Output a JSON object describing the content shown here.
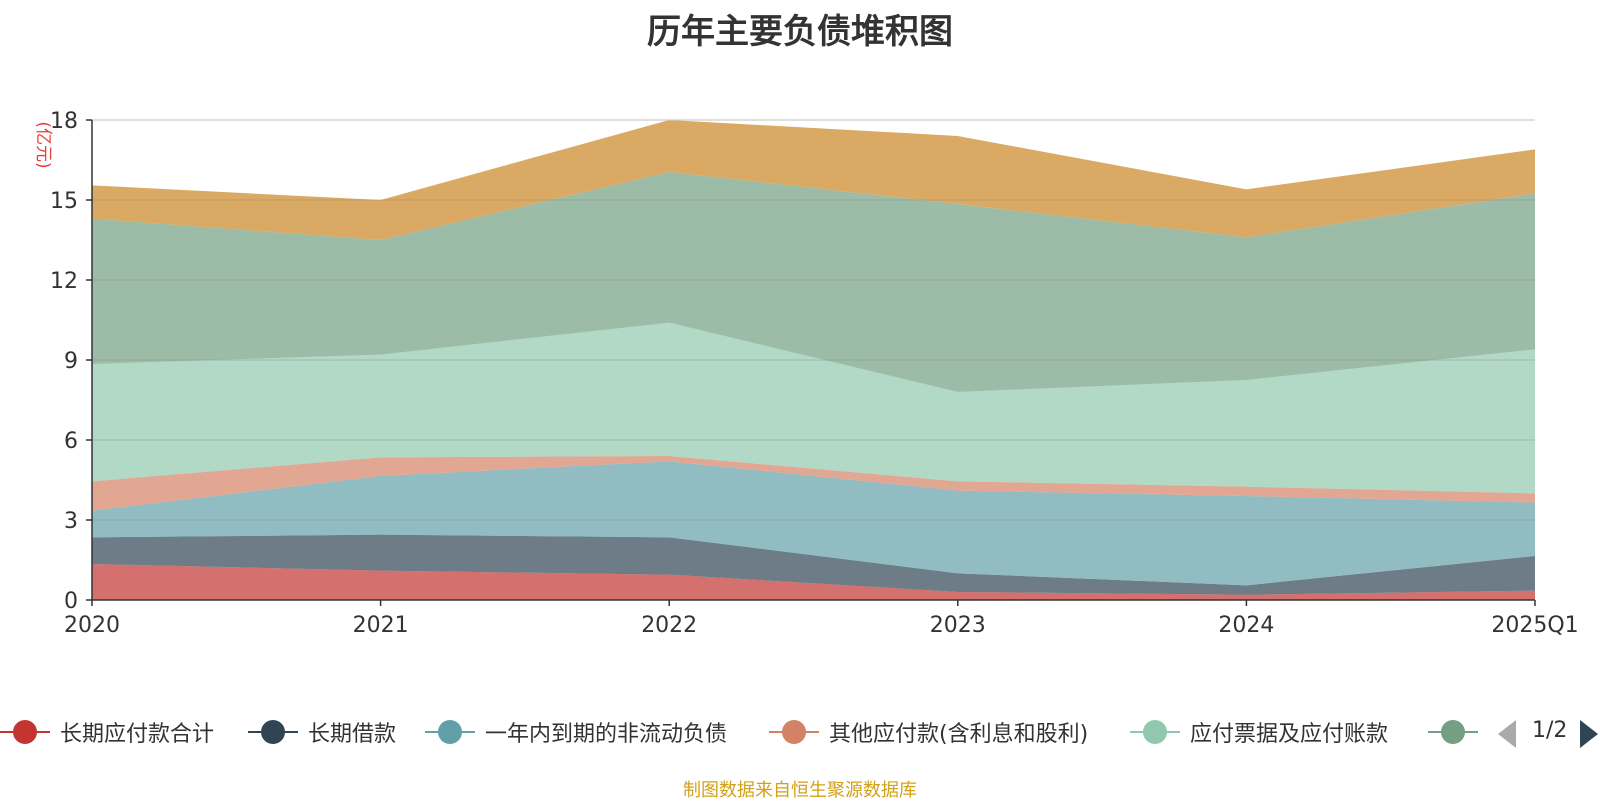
{
  "chart_data": {
    "type": "area",
    "stacked": true,
    "title": "历年主要负债堆积图",
    "ylabel": "(亿元)",
    "xlabel": "",
    "categories": [
      "2020",
      "2021",
      "2022",
      "2023",
      "2024",
      "2025Q1"
    ],
    "ylim": [
      0,
      18
    ],
    "yticks": [
      "0",
      "3",
      "6",
      "9",
      "12",
      "15",
      "18"
    ],
    "grid": true,
    "legend_position": "bottom",
    "series": [
      {
        "name": "长期应付款合计",
        "color": "#c23531",
        "values": [
          1.35,
          1.1,
          0.95,
          0.3,
          0.2,
          0.35
        ]
      },
      {
        "name": "长期借款",
        "color": "#2f4554",
        "values": [
          1.0,
          1.35,
          1.4,
          0.7,
          0.35,
          1.3
        ]
      },
      {
        "name": "一年内到期的非流动负债",
        "color": "#61a0a8",
        "values": [
          1.0,
          2.2,
          2.85,
          3.1,
          3.35,
          2.0
        ]
      },
      {
        "name": "其他应付款(含利息和股利)",
        "color": "#d48265",
        "values": [
          1.1,
          0.7,
          0.2,
          0.35,
          0.35,
          0.35
        ]
      },
      {
        "name": "应付票据及应付账款",
        "color": "#91c7ae",
        "values": [
          4.4,
          3.85,
          5.0,
          3.35,
          4.0,
          5.4
        ]
      },
      {
        "name": "",
        "color": "#749f83",
        "values": [
          5.45,
          4.3,
          5.65,
          7.05,
          5.35,
          5.85
        ]
      },
      {
        "name": "",
        "color": "#ca8622",
        "values": [
          1.25,
          1.5,
          1.95,
          2.55,
          1.8,
          1.65
        ]
      }
    ]
  },
  "legend": {
    "items": [
      {
        "label": "长期应付款合计",
        "color": "#c23531"
      },
      {
        "label": "长期借款",
        "color": "#2f4554"
      },
      {
        "label": "一年内到期的非流动负债",
        "color": "#61a0a8"
      },
      {
        "label": "其他应付款(含利息和股利)",
        "color": "#d48265"
      },
      {
        "label": "应付票据及应付账款",
        "color": "#91c7ae"
      },
      {
        "label": "",
        "color": "#749f83"
      }
    ],
    "page_indicator": "1/2"
  },
  "source_note": "制图数据来自恒生聚源数据库"
}
